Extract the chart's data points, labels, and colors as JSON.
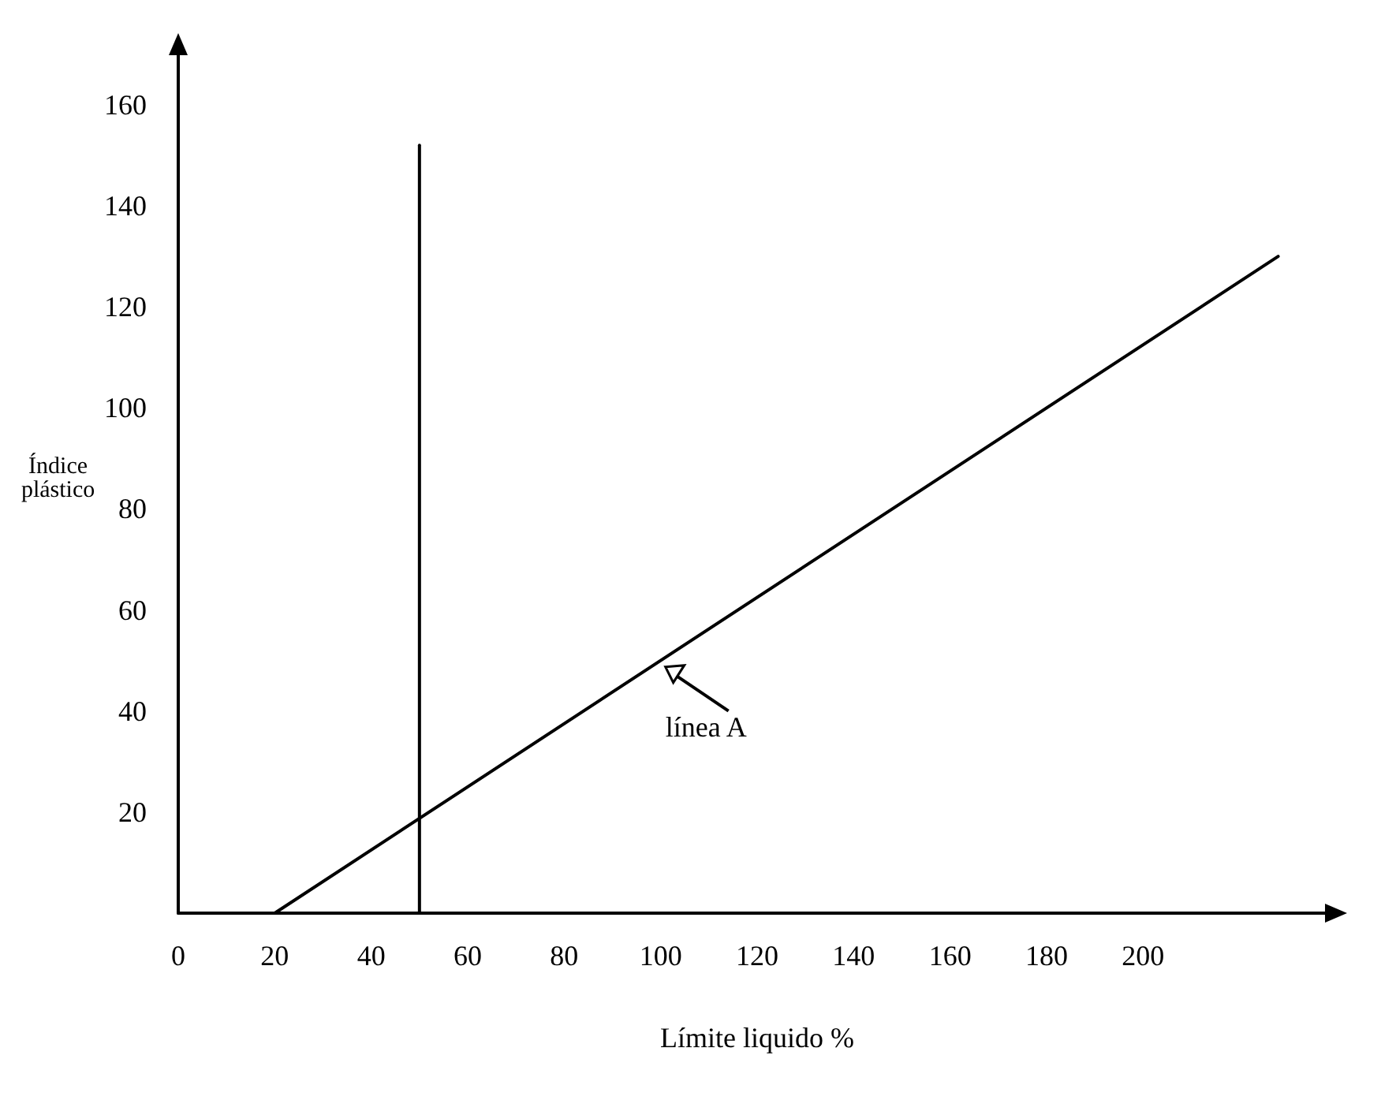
{
  "chart_data": {
    "type": "line",
    "xlabel": "Límite liquido %",
    "ylabel": "Índice plástico",
    "xlim": [
      0,
      240
    ],
    "xticks": [
      0,
      20,
      40,
      60,
      80,
      100,
      120,
      140,
      160,
      180,
      200
    ],
    "ylim": [
      0,
      172
    ],
    "yticks": [
      20,
      40,
      60,
      80,
      100,
      120,
      140,
      160
    ],
    "series": [
      {
        "color": "#000000",
        "x": [
          20,
          228
        ],
        "values": [
          0,
          130
        ]
      },
      {
        "color": "#000000",
        "x": [
          50,
          50
        ],
        "values": [
          0,
          152
        ]
      }
    ],
    "annotations": [
      {
        "text": "línea A",
        "x": 100,
        "y": 50
      }
    ],
    "grid": false,
    "marker": "none",
    "line_style": "solid"
  }
}
